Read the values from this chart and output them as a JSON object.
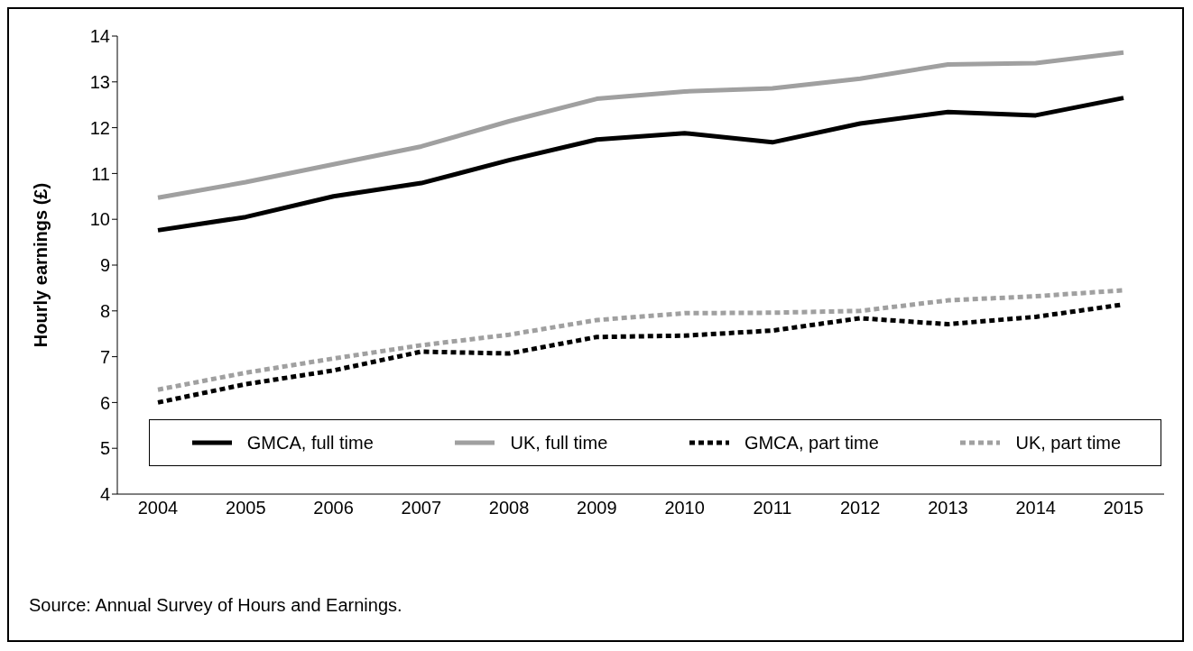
{
  "chart_data": {
    "type": "line",
    "ylabel": "Hourly earnings (£)",
    "categories": [
      "2004",
      "2005",
      "2006",
      "2007",
      "2008",
      "2009",
      "2010",
      "2011",
      "2012",
      "2013",
      "2014",
      "2015"
    ],
    "series": [
      {
        "name": "GMCA, full time",
        "color": "#000000",
        "line_style": "solid",
        "values": [
          9.76,
          10.05,
          10.5,
          10.79,
          11.29,
          11.74,
          11.88,
          11.68,
          12.09,
          12.34,
          12.27,
          12.65
        ]
      },
      {
        "name": "UK, full time",
        "color": "#a0a0a0",
        "line_style": "solid",
        "values": [
          10.47,
          10.81,
          11.2,
          11.59,
          12.14,
          12.63,
          12.79,
          12.86,
          13.07,
          13.38,
          13.41,
          13.64
        ]
      },
      {
        "name": "GMCA, part time",
        "color": "#000000",
        "line_style": "dashed",
        "values": [
          6.0,
          6.4,
          6.7,
          7.11,
          7.07,
          7.43,
          7.46,
          7.57,
          7.84,
          7.71,
          7.87,
          8.14
        ]
      },
      {
        "name": "UK, part time",
        "color": "#a0a0a0",
        "line_style": "dashed",
        "values": [
          6.28,
          6.65,
          6.96,
          7.25,
          7.48,
          7.8,
          7.95,
          7.96,
          8.0,
          8.23,
          8.32,
          8.45
        ]
      }
    ],
    "ylim": [
      4,
      14
    ],
    "yticks": [
      4,
      5,
      6,
      7,
      8,
      9,
      10,
      11,
      12,
      13,
      14
    ],
    "grid": false,
    "legend": "bottom",
    "marker": "none",
    "annotations": [
      "Source: Annual Survey of Hours and Earnings."
    ]
  }
}
